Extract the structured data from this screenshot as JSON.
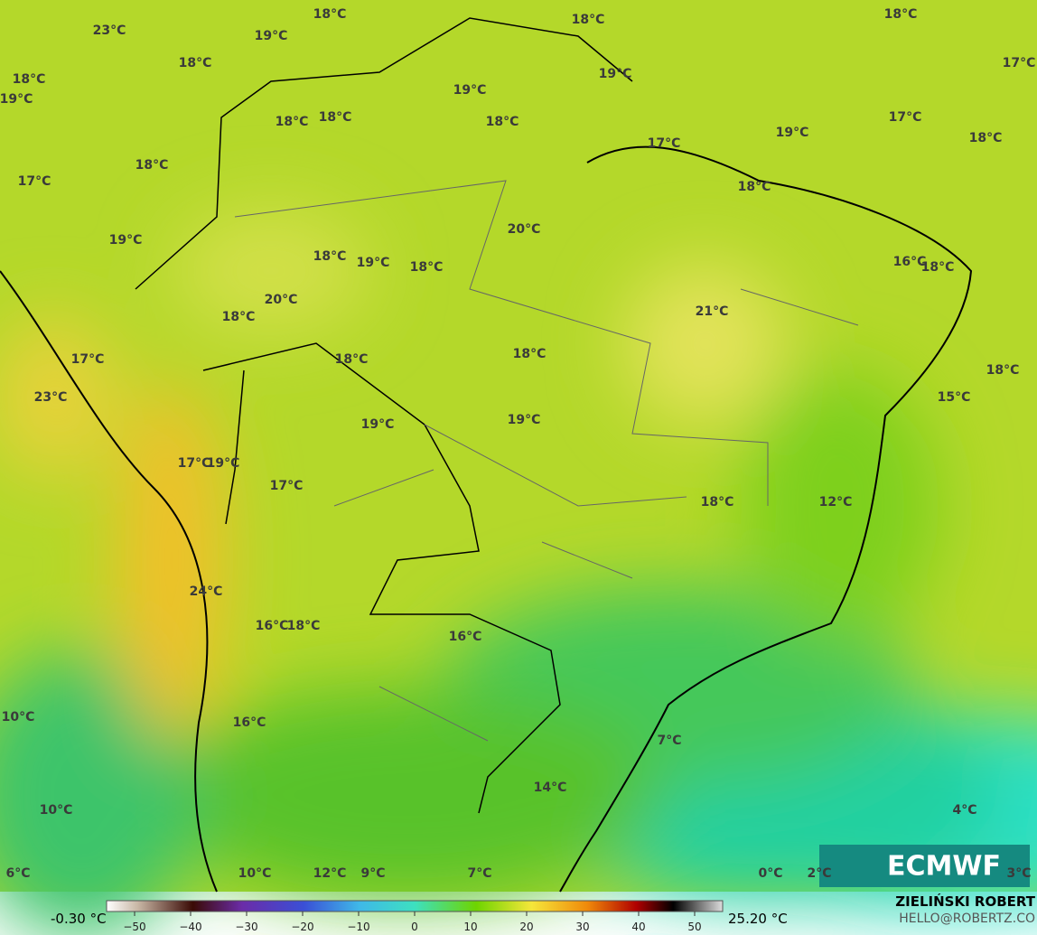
{
  "map": {
    "labels": [
      "18°C",
      "18°C",
      "18°C",
      "17°C",
      "23°C",
      "19°C",
      "18°C",
      "19°C",
      "18°C",
      "19°C",
      "19°C",
      "18°C",
      "18°C",
      "18°C",
      "17°C",
      "19°C",
      "18°C",
      "17°C",
      "18°C",
      "17°C",
      "18°C",
      "20°C",
      "19°C",
      "18°C",
      "19°C",
      "18°C",
      "16°C",
      "18°C",
      "20°C",
      "21°C",
      "18°C",
      "17°C",
      "18°C",
      "18°C",
      "18°C",
      "23°C",
      "15°C",
      "19°C",
      "19°C",
      "17°C",
      "19°C",
      "17°C",
      "18°C",
      "12°C",
      "24°C",
      "16°C",
      "18°C",
      "16°C",
      "10°C",
      "16°C",
      "7°C",
      "14°C",
      "10°C",
      "4°C",
      "6°C",
      "10°C",
      "12°C",
      "9°C",
      "7°C",
      "0°C",
      "2°C",
      "3°C"
    ],
    "logo": "ECMWF"
  },
  "colorbar": {
    "min_label": "-0.30 °C",
    "max_label": "25.20 °C",
    "lim": [
      -55,
      55
    ],
    "ticks": [
      {
        "value": -50,
        "label": "−50"
      },
      {
        "value": -40,
        "label": "−40"
      },
      {
        "value": -30,
        "label": "−30"
      },
      {
        "value": -20,
        "label": "−20"
      },
      {
        "value": -10,
        "label": "−10"
      },
      0,
      10,
      20,
      30,
      40,
      50
    ]
  },
  "credits": {
    "author": "ZIELIŃSKI ROBERT",
    "contact": "HELLO@ROBERTZ.CO"
  }
}
